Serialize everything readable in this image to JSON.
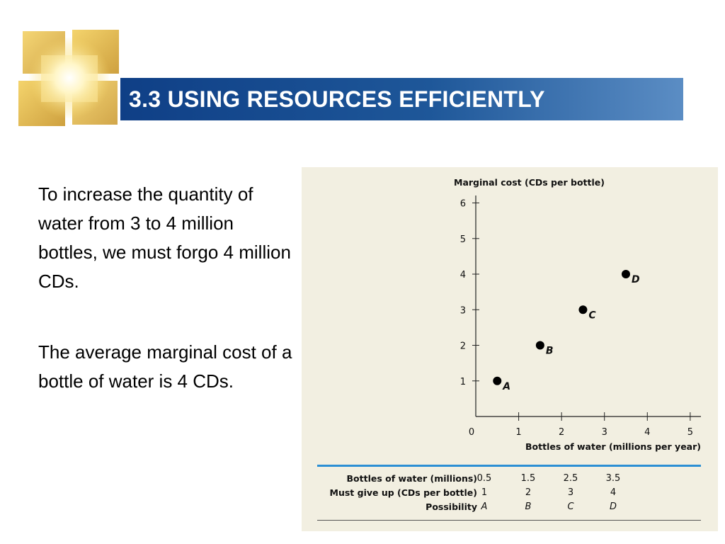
{
  "slide": {
    "title": "3.3 USING RESOURCES EFFICIENTLY",
    "paragraphs": [
      "To increase the quantity of water from 3 to 4 million bottles, we must forgo 4 million CDs.",
      "The average marginal cost of a bottle of water is 4 CDs."
    ]
  },
  "colors": {
    "title_bar": "#1e5799",
    "title_text": "#ffffff",
    "figure_bg": "#f2efe1",
    "table_rule": "#2b8fd4",
    "points": "#000000"
  },
  "chart_data": {
    "type": "scatter",
    "title": "",
    "ylabel": "Marginal cost (CDs per bottle)",
    "xlabel": "Bottles of water (millions per year)",
    "xlim": [
      0,
      5.25
    ],
    "ylim": [
      0,
      6.05
    ],
    "x_ticks": [
      "0",
      "1",
      "2",
      "3",
      "4",
      "5"
    ],
    "y_ticks": [
      "1",
      "2",
      "3",
      "4",
      "5",
      "6"
    ],
    "grid": false,
    "points": [
      {
        "x": 0.5,
        "y": 1,
        "label": "A"
      },
      {
        "x": 1.5,
        "y": 2,
        "label": "B"
      },
      {
        "x": 2.5,
        "y": 3,
        "label": "C"
      },
      {
        "x": 3.5,
        "y": 4,
        "label": "D"
      }
    ]
  },
  "table": {
    "rows": [
      {
        "label": "Bottles of water (millions)",
        "values": [
          "0.5",
          "1.5",
          "2.5",
          "3.5"
        ]
      },
      {
        "label": "Must give up (CDs per bottle)",
        "values": [
          "1",
          "2",
          "3",
          "4"
        ]
      },
      {
        "label": "Possibility",
        "values": [
          "A",
          "B",
          "C",
          "D"
        ]
      }
    ]
  }
}
